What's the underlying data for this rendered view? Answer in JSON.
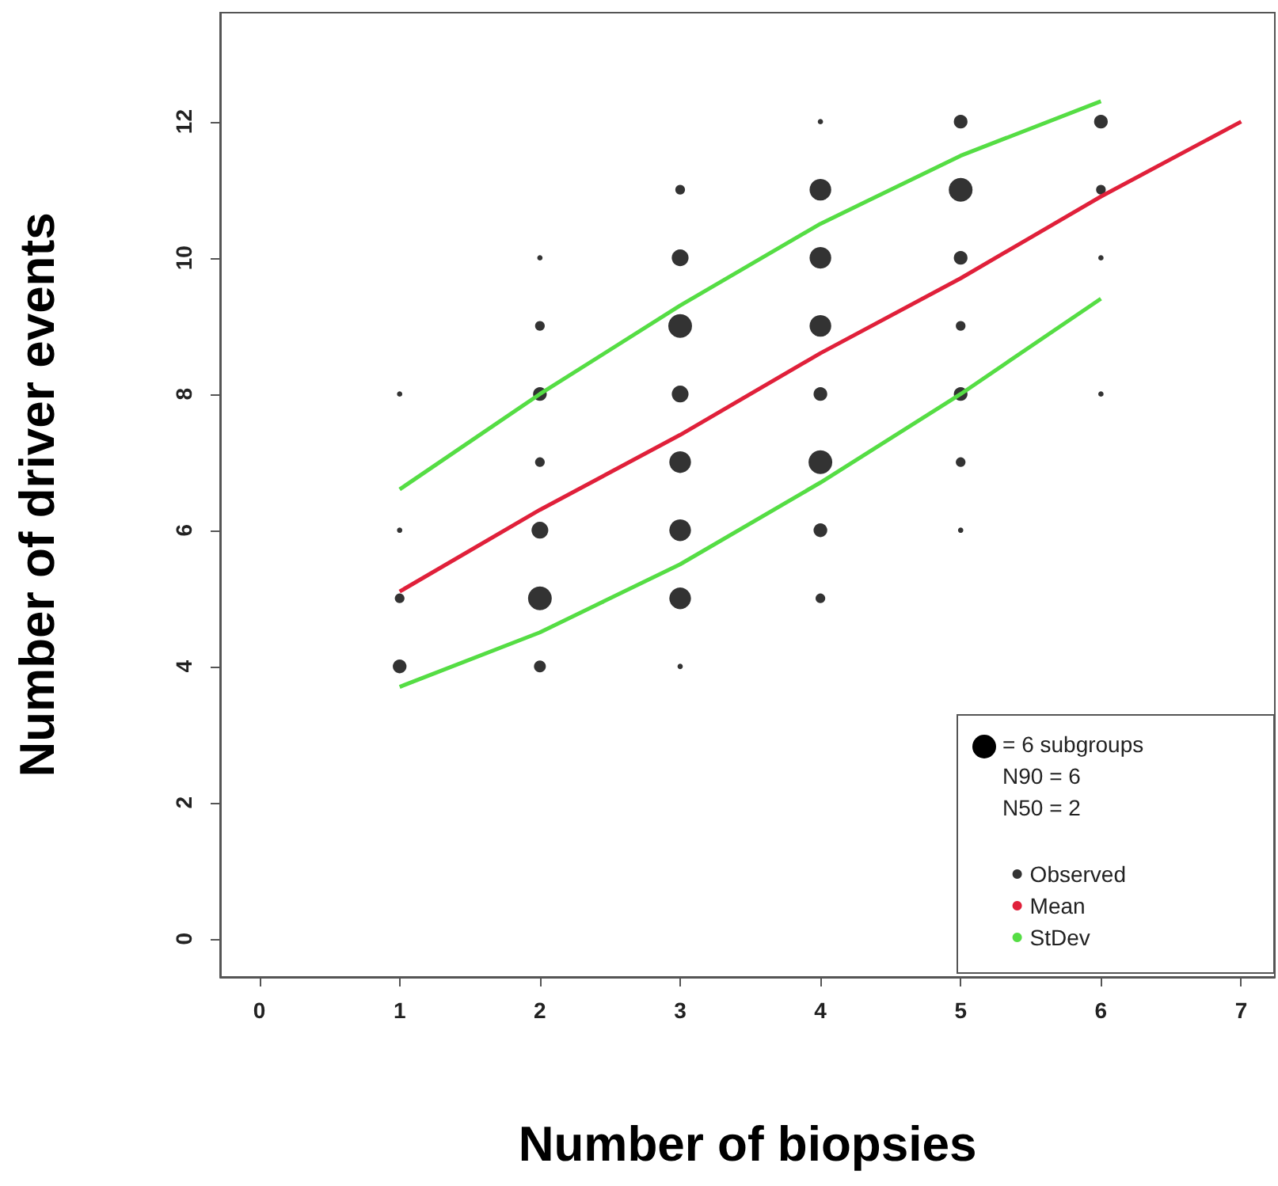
{
  "chart_data": {
    "type": "bubble",
    "xlabel": "Number of biopsies",
    "ylabel": "Number of driver events",
    "xlim": [
      -0.28,
      7.24
    ],
    "ylim": [
      -0.56,
      13.6
    ],
    "xticks": [
      0,
      1,
      2,
      3,
      4,
      5,
      6,
      7
    ],
    "yticks": [
      0,
      2,
      4,
      6,
      8,
      10,
      12
    ],
    "grid": false,
    "legend": "bottom right",
    "size_legend": [
      {
        "value": 6,
        "label": "= 6 subgroups"
      }
    ],
    "annotations": [
      "N90 = 6",
      "N50 = 2"
    ],
    "series": [
      {
        "name": "Observed",
        "color": "#000000",
        "marker": "circle",
        "x": [
          1,
          1,
          1,
          1,
          2,
          2,
          2,
          2,
          2,
          2,
          2,
          3,
          3,
          3,
          3,
          3,
          3,
          3,
          3,
          4,
          4,
          4,
          4,
          4,
          4,
          4,
          4,
          5,
          5,
          5,
          5,
          5,
          5,
          5,
          6,
          6,
          6,
          6
        ],
        "values": [
          4,
          5,
          6,
          8,
          4,
          5,
          6,
          7,
          8,
          9,
          10,
          4,
          5,
          6,
          7,
          8,
          9,
          10,
          11,
          5,
          6,
          7,
          8,
          9,
          10,
          11,
          12,
          6,
          7,
          8,
          9,
          10,
          11,
          12,
          8,
          10,
          11,
          12
        ],
        "sizes": [
          2,
          1,
          0.3,
          0.3,
          1.5,
          6,
          3,
          1,
          2,
          1,
          0.3,
          0.3,
          5,
          5,
          5,
          3,
          6,
          3,
          1,
          1,
          2,
          6,
          2,
          5,
          5,
          5,
          0.3,
          0.3,
          1,
          2,
          1,
          2,
          6,
          2,
          0.3,
          0.3,
          1,
          2
        ]
      },
      {
        "name": "Mean",
        "color": "#e0203a",
        "type": "line",
        "x": [
          1,
          2,
          3,
          4,
          5,
          6,
          7
        ],
        "values": [
          5.1,
          6.3,
          7.4,
          8.6,
          9.7,
          10.9,
          12
        ]
      },
      {
        "name": "StDev",
        "color": "#55dd44",
        "type": "line",
        "x": [
          1,
          2,
          3,
          4,
          5,
          6
        ],
        "values": [
          6.6,
          8.0,
          9.3,
          10.5,
          11.5,
          12.3
        ]
      },
      {
        "color": "#55dd44",
        "type": "line",
        "x": [
          1,
          2,
          3,
          4,
          5,
          6
        ],
        "values": [
          3.7,
          4.5,
          5.5,
          6.7,
          8.0,
          9.4
        ]
      }
    ]
  }
}
